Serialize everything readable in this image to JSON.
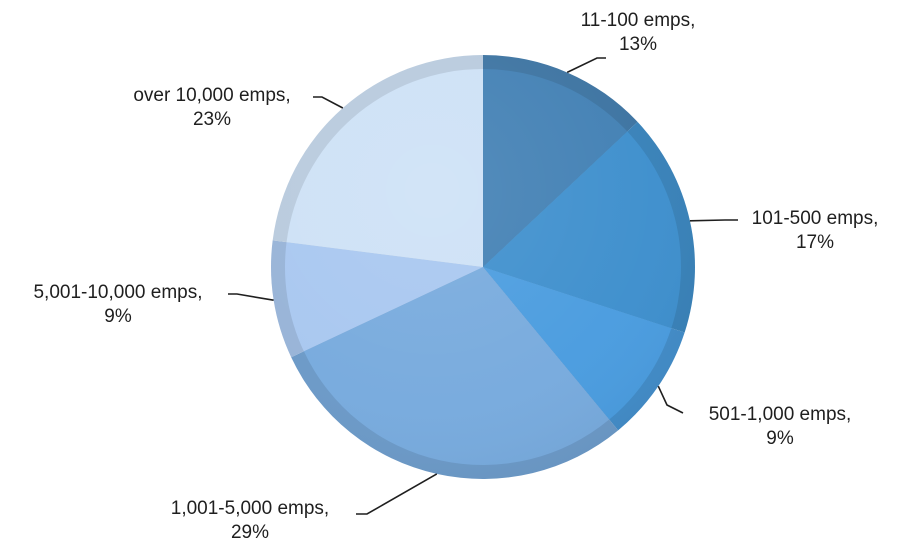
{
  "chart_data": {
    "type": "pie",
    "title": "",
    "categories": [
      "11-100 emps,",
      "101-500 emps,",
      "501-1,000 emps,",
      "1,001-5,000 emps,",
      "5,001-10,000 emps,",
      "over 10,000 emps,"
    ],
    "values": [
      13,
      17,
      9,
      29,
      9,
      23
    ],
    "value_labels": [
      "13%",
      "17%",
      "9%",
      "29%",
      "9%",
      "23%"
    ],
    "start_angle_deg": 0,
    "direction": "clockwise",
    "legend": "none",
    "data_labels": "outside-with-leader-lines",
    "colors": [
      "#3e78a8",
      "#3a86c0",
      "#4592d0",
      "#6f9fcf",
      "#9dbae0",
      "#c0d2e6"
    ]
  }
}
